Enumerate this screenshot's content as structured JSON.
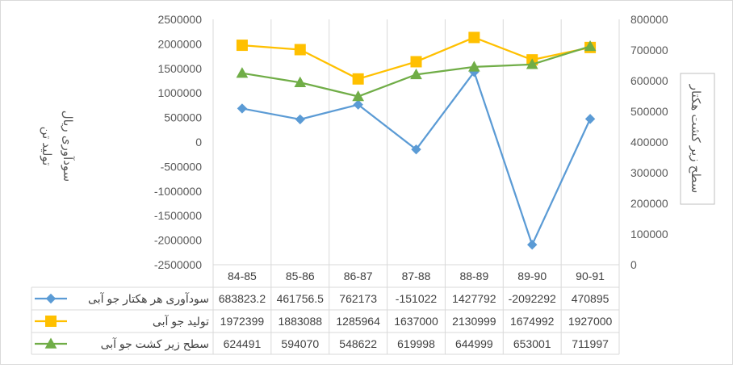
{
  "chart_data": {
    "type": "line",
    "categories": [
      "84-85",
      "85-86",
      "86-87",
      "87-88",
      "88-89",
      "89-90",
      "90-91"
    ],
    "series": [
      {
        "name": "سودآوری هر هکتار جو آبی",
        "axis": "left",
        "color": "#5b9bd5",
        "marker": "diamond",
        "values": [
          683823.2,
          461756.5,
          762173,
          -151022,
          1427792,
          -2092292,
          470895
        ],
        "labels": [
          "683823.2",
          "461756.5",
          "762173",
          "-151022",
          "1427792",
          "-2092292",
          "470895"
        ]
      },
      {
        "name": "تولید جو آبی",
        "axis": "left",
        "color": "#ffc000",
        "marker": "square",
        "values": [
          1972399,
          1883088,
          1285964,
          1637000,
          2130999,
          1674992,
          1927000
        ],
        "labels": [
          "1972399",
          "1883088",
          "1285964",
          "1637000",
          "2130999",
          "1674992",
          "1927000"
        ]
      },
      {
        "name": "سطح زیر کشت جو آبی",
        "axis": "right",
        "color": "#70ad47",
        "marker": "triangle",
        "values": [
          624491,
          594070,
          548622,
          619998,
          644999,
          653001,
          711997
        ],
        "labels": [
          "624491",
          "594070",
          "548622",
          "619998",
          "644999",
          "653001",
          "711997"
        ]
      }
    ],
    "y_left": {
      "label_lines": [
        "تولید تن",
        "سودآوری ریال"
      ],
      "ylim": [
        -2500000,
        2500000
      ],
      "ticks": [
        "2500000",
        "2000000",
        "1500000",
        "1000000",
        "500000",
        "0",
        "-500000",
        "-1000000",
        "-1500000",
        "-2000000",
        "-2500000"
      ]
    },
    "y_right": {
      "label": "سطح زیر کشت هکتار",
      "ylim": [
        0,
        800000
      ],
      "ticks": [
        "800000",
        "700000",
        "600000",
        "500000",
        "400000",
        "300000",
        "200000",
        "100000",
        "0"
      ]
    },
    "grid": "vertical-category-lines",
    "legend": "data-table"
  }
}
